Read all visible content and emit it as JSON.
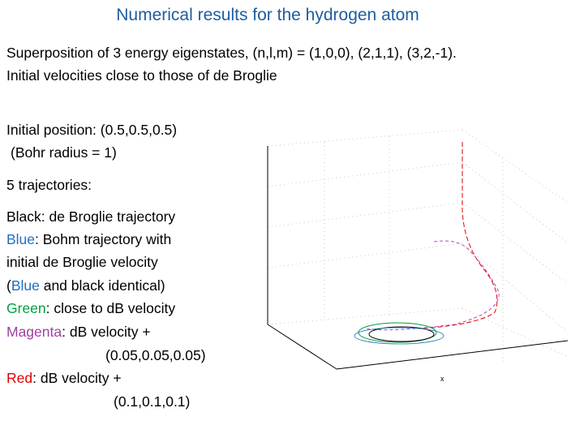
{
  "title": "Numerical results for the hydrogen atom",
  "intro": [
    "Superposition of 3 energy eigenstates, (n,l,m) = (1,0,0), (2,1,1), (3,2,-1).",
    "Initial velocities close to those of de Broglie"
  ],
  "initial_position": [
    "Initial position: (0.5,0.5,0.5)",
    "(Bohr radius = 1)"
  ],
  "trajectory_count": "5 trajectories:",
  "legend": {
    "black": {
      "name": "Black",
      "text": ": de Broglie trajectory"
    },
    "blue": {
      "name": "Blue",
      "lines": [
        ": Bohm trajectory with",
        "initial de Broglie velocity"
      ]
    },
    "note": {
      "open": "(",
      "name": "Blue",
      "rest": " and black identical)"
    },
    "green": {
      "name": "Green",
      "text": ": close to dB velocity"
    },
    "magenta": {
      "name": "Magenta",
      "lines": [
        ": dB velocity +",
        "(0.05,0.05,0.05)"
      ]
    },
    "red": {
      "name": "Red",
      "lines": [
        ": dB velocity +",
        "(0.1,0.1,0.1)"
      ]
    }
  },
  "plot_x_label": "x"
}
